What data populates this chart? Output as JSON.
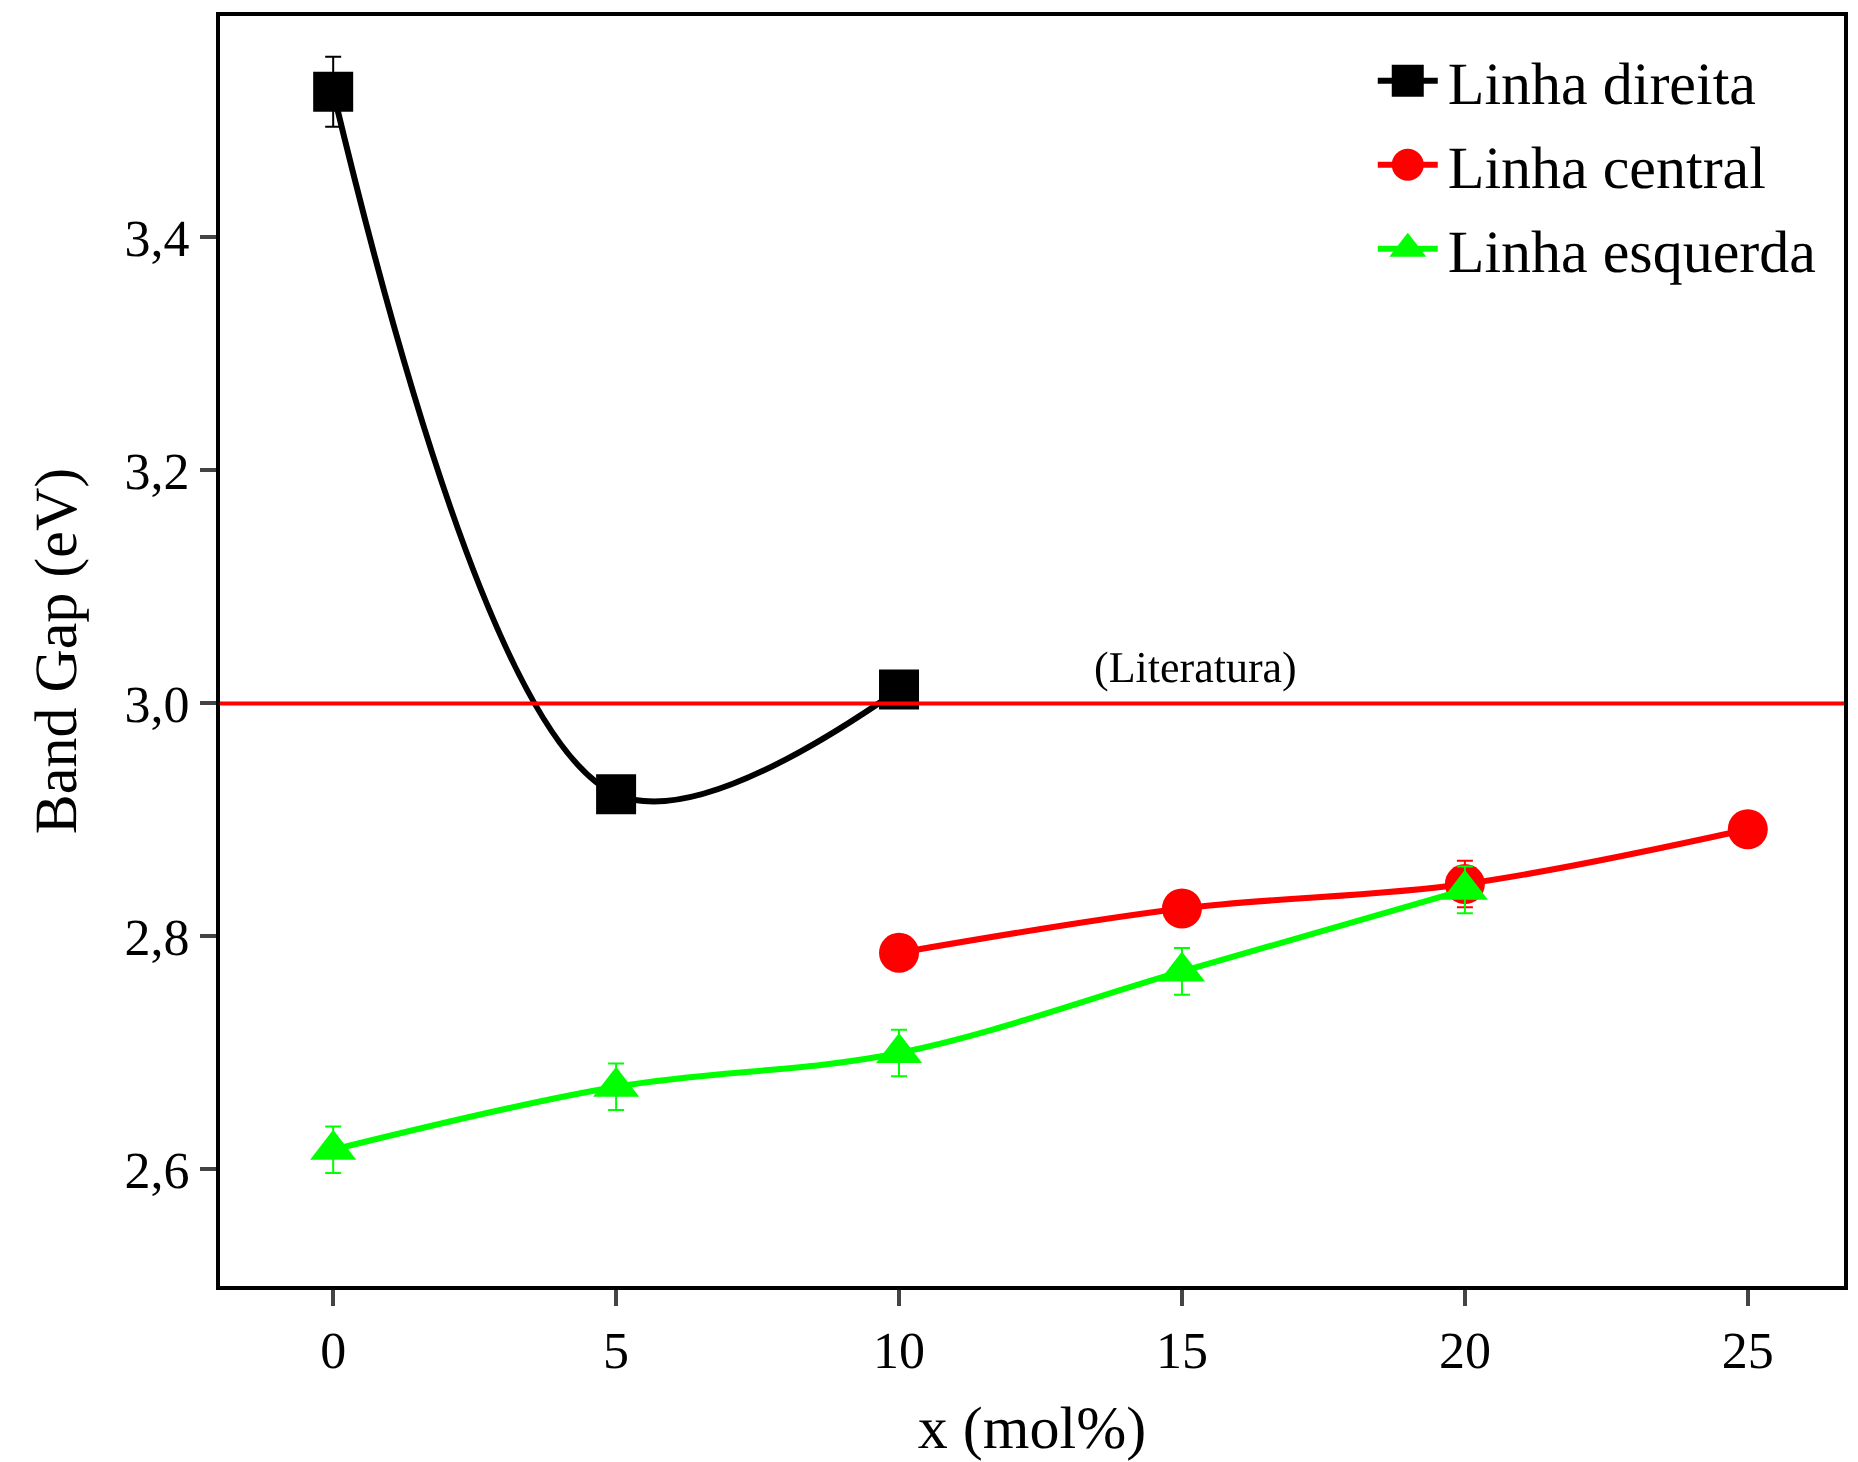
{
  "chart_data": {
    "type": "line",
    "xlabel": "x (mol%)",
    "ylabel": "Band Gap (eV)",
    "xlim": [
      -2,
      26.7
    ],
    "xticks": [
      {
        "value": 0,
        "label": "0"
      },
      {
        "value": 5,
        "label": "5"
      },
      {
        "value": 10,
        "label": "10"
      },
      {
        "value": 15,
        "label": "15"
      },
      {
        "value": 20,
        "label": "20"
      },
      {
        "value": 25,
        "label": "25"
      }
    ],
    "ylim": [
      2.5,
      3.59
    ],
    "yticks": [
      {
        "value": 2.6,
        "label": "2,6"
      },
      {
        "value": 2.8,
        "label": "2,8"
      },
      {
        "value": 3.0,
        "label": "3,0"
      },
      {
        "value": 3.2,
        "label": "3,2"
      },
      {
        "value": 3.4,
        "label": "3,4"
      }
    ],
    "series": [
      {
        "name": "Linha direita",
        "color": "#000000",
        "marker": "square",
        "x": [
          0,
          5,
          10
        ],
        "values": [
          3.525,
          2.922,
          3.012
        ],
        "errors": [
          0.03,
          null,
          null
        ]
      },
      {
        "name": "Linha central",
        "color": "#ff0000",
        "marker": "circle",
        "x": [
          10,
          15,
          20,
          25
        ],
        "values": [
          2.786,
          2.824,
          2.845,
          2.892
        ],
        "errors": [
          null,
          null,
          0.02,
          null
        ]
      },
      {
        "name": "Linha esquerda",
        "color": "#00ff00",
        "marker": "triangle",
        "x": [
          0,
          5,
          10,
          15,
          20
        ],
        "values": [
          2.617,
          2.671,
          2.7,
          2.77,
          2.84
        ],
        "errors": [
          0.02,
          0.02,
          0.02,
          0.02,
          0.02
        ]
      }
    ],
    "ref_lines": [
      {
        "axis": "y",
        "value": 3.0,
        "label": "(Literatura)",
        "color": "#ff0000"
      }
    ],
    "legend": "top right"
  }
}
